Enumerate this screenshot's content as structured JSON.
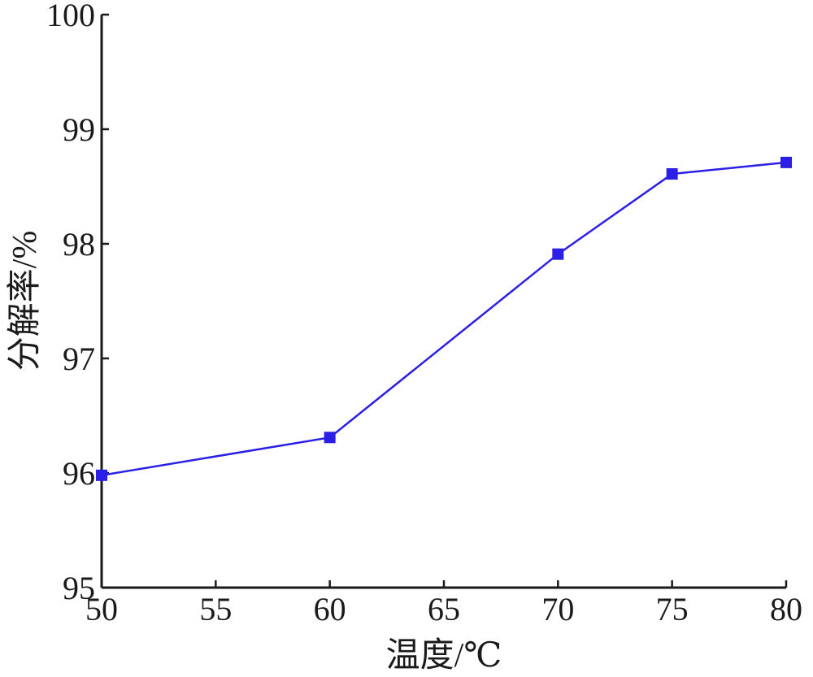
{
  "chart_data": {
    "type": "line",
    "title": "",
    "xlabel": "温度/℃",
    "ylabel": "分解率/%",
    "xlim": [
      50,
      80
    ],
    "ylim": [
      95,
      100
    ],
    "x_ticks": [
      50,
      55,
      60,
      65,
      70,
      75,
      80
    ],
    "y_ticks": [
      95,
      96,
      97,
      98,
      99,
      100
    ],
    "grid": false,
    "legend": "none",
    "series": [
      {
        "color": "#2b1ee6",
        "marker": "square",
        "x": [
          50,
          60,
          70,
          75,
          80
        ],
        "y": [
          95.98,
          96.31,
          97.91,
          98.61,
          98.71
        ]
      }
    ]
  }
}
